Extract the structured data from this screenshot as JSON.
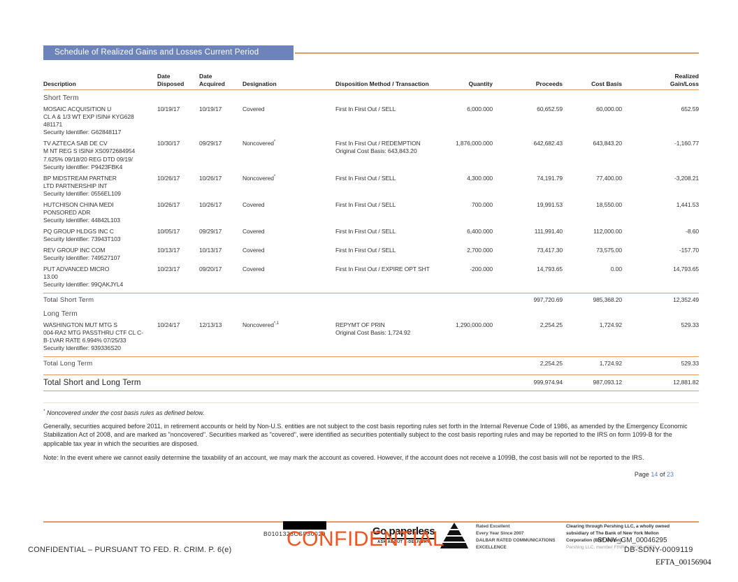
{
  "title": "Schedule of Realized Gains and Losses Current Period",
  "colors": {
    "title_bar_blue": "#6D84BA",
    "accent_orange": "#DD9A6B",
    "watermark_orange": "#F4541D",
    "page_number_blue": "#5B7FC4"
  },
  "table": {
    "headers": [
      "Description",
      "Date\nDisposed",
      "Date\nAcquired",
      "Designation",
      "Disposition Method / Transaction",
      "Quantity",
      "Proceeds",
      "Cost Basis",
      "Realized\nGain/Loss"
    ],
    "sections": [
      {
        "label": "Short Term",
        "rows": [
          {
            "desc": [
              "MOSAIC ACQUISITION U",
              "CL A & 1/3 WT EXP ISIN# KYG628",
              "481171",
              "Security Identifier: G62848117"
            ],
            "disposed": "10/19/17",
            "acquired": "10/19/17",
            "designation": "Covered",
            "designation_sup": "",
            "method": [
              "First In First Out / SELL"
            ],
            "quantity": "6,000.000",
            "proceeds": "60,652.59",
            "cost_basis": "60,000.00",
            "gain_loss": "652.59"
          },
          {
            "desc": [
              "TV AZTECA SAB DE CV",
              "M NT REG S ISIN# XS0972684954",
              "7.625% 09/18/20 REG DTD 09/19/",
              "Security Identifier: P9423FBK4"
            ],
            "disposed": "10/30/17",
            "acquired": "09/29/17",
            "designation": "Noncovered",
            "designation_sup": "*",
            "method": [
              "First In First Out / REDEMPTION",
              "Original Cost Basis: 643,843.20"
            ],
            "quantity": "1,876,000.000",
            "proceeds": "642,682.43",
            "cost_basis": "643,843.20",
            "gain_loss": "-1,160.77"
          },
          {
            "desc": [
              "BP MIDSTREAM PARTNER",
              "LTD PARTNERSHIP INT",
              "Security Identifier: 0556EL109"
            ],
            "disposed": "10/26/17",
            "acquired": "10/26/17",
            "designation": "Noncovered",
            "designation_sup": "*",
            "method": [
              "First In First Out / SELL"
            ],
            "quantity": "4,300.000",
            "proceeds": "74,191.79",
            "cost_basis": "77,400.00",
            "gain_loss": "-3,208.21"
          },
          {
            "desc": [
              "HUTCHISON CHINA MEDI",
              "PONSORED ADR",
              "Security Identifier: 44842L103"
            ],
            "disposed": "10/26/17",
            "acquired": "10/26/17",
            "designation": "Covered",
            "designation_sup": "",
            "method": [
              "First In First Out / SELL"
            ],
            "quantity": "700.000",
            "proceeds": "19,991.53",
            "cost_basis": "18,550.00",
            "gain_loss": "1,441.53"
          },
          {
            "desc": [
              "PQ GROUP HLDGS INC C",
              "Security Identifier: 73943T103"
            ],
            "disposed": "10/05/17",
            "acquired": "09/29/17",
            "designation": "Covered",
            "designation_sup": "",
            "method": [
              "First In First Out / SELL"
            ],
            "quantity": "6,400.000",
            "proceeds": "111,991.40",
            "cost_basis": "112,000.00",
            "gain_loss": "-8.60"
          },
          {
            "desc": [
              "REV GROUP INC COM",
              "Security Identifier: 749527107"
            ],
            "disposed": "10/13/17",
            "acquired": "10/13/17",
            "designation": "Covered",
            "designation_sup": "",
            "method": [
              "First In First Out / SELL"
            ],
            "quantity": "2,700.000",
            "proceeds": "73,417.30",
            "cost_basis": "73,575.00",
            "gain_loss": "-157.70"
          },
          {
            "desc": [
              "PUT  ADVANCED MICRO",
              "13.00",
              "Security Identifier: 99QAKJYL4"
            ],
            "disposed": "10/23/17",
            "acquired": "09/20/17",
            "designation": "Covered",
            "designation_sup": "",
            "method": [
              "First In First Out / EXPIRE OPT SHT"
            ],
            "quantity": "-200.000",
            "proceeds": "14,793.65",
            "cost_basis": "0.00",
            "gain_loss": "14,793.65"
          }
        ],
        "total_label": "Total Short Term",
        "total": {
          "proceeds": "997,720.69",
          "cost_basis": "985,368.20",
          "gain_loss": "12,352.49"
        }
      },
      {
        "label": "Long Term",
        "rows": [
          {
            "desc": [
              "WASHINGTON MUT MTG S",
              "004-RA2 MTG PASSTHRU CTF CL C-",
              "B-1VAR RATE 6.994% 07/25/33",
              "Security Identifier: 939336S20"
            ],
            "disposed": "10/24/17",
            "acquired": "12/13/13",
            "designation": "Noncovered",
            "designation_sup": "*,1",
            "method": [
              "REPYMT OF PRIN",
              "Original Cost Basis: 1,724.92"
            ],
            "quantity": "1,290,000.000",
            "proceeds": "2,254.25",
            "cost_basis": "1,724.92",
            "gain_loss": "529.33"
          }
        ],
        "total_label": "Total Long Term",
        "total": {
          "proceeds": "2,254.25",
          "cost_basis": "1,724.92",
          "gain_loss": "529.33"
        }
      }
    ],
    "grand_total_label": "Total Short and Long Term",
    "grand_total": {
      "proceeds": "999,974.94",
      "cost_basis": "987,093.12",
      "gain_loss": "12,881.82"
    }
  },
  "footnotes": {
    "marker": "*",
    "star_note": "Noncovered under the cost basis rules as defined below.",
    "para1": "Generally, securities acquired before 2011, in retirement accounts or held by Non-U.S. entities are not subject to the cost basis reporting rules set forth in the Internal Revenue Code of 1986, as amended by the Emergency Economic Stabilization Act of 2008, and are marked as \"noncovered\".  Securities marked  as \"covered\",  were identified as securities potentially subject to the cost basis reporting rules and may  be reported to the IRS on form 1099-B for the applicable tax year in which the securities are disposed.",
    "note": "Note:  In the event where we cannot easily determine the taxability of an account, we may mark the account as covered. However, if the account does not receive a 1099B, the cost basis will not be reported to the IRS."
  },
  "pagination": {
    "label": "Page",
    "current": "14",
    "of": "of",
    "total": "23"
  },
  "footer": {
    "document_code": "B0101323CSF30020",
    "watermark": "CONFIDENTIAL",
    "paperless": {
      "title": "Go paperless",
      "tagline": "ASK ABOUT E-DELIVERY"
    },
    "rated": "Rated Excellent\nEvery Year Since 2007\nDALBAR RATED COMMUNICATIONS\nEXCELLENCE",
    "clearing": "Clearing through Pershing LLC, a wholly owned\nsubsidiary of The Bank of New York Mellon\nCorporation (BNY Mellon)",
    "member": "Pershing LLC, member FINRA, NYSE, SIPC",
    "bates": {
      "sdny": "SDNY_GM_00046295",
      "db": "DB-SDNY-0009119",
      "efta": "EFTA_00156904"
    },
    "confidential_notice": "CONFIDENTIAL – PURSUANT TO FED. R. CRIM. P. 6(e)"
  }
}
